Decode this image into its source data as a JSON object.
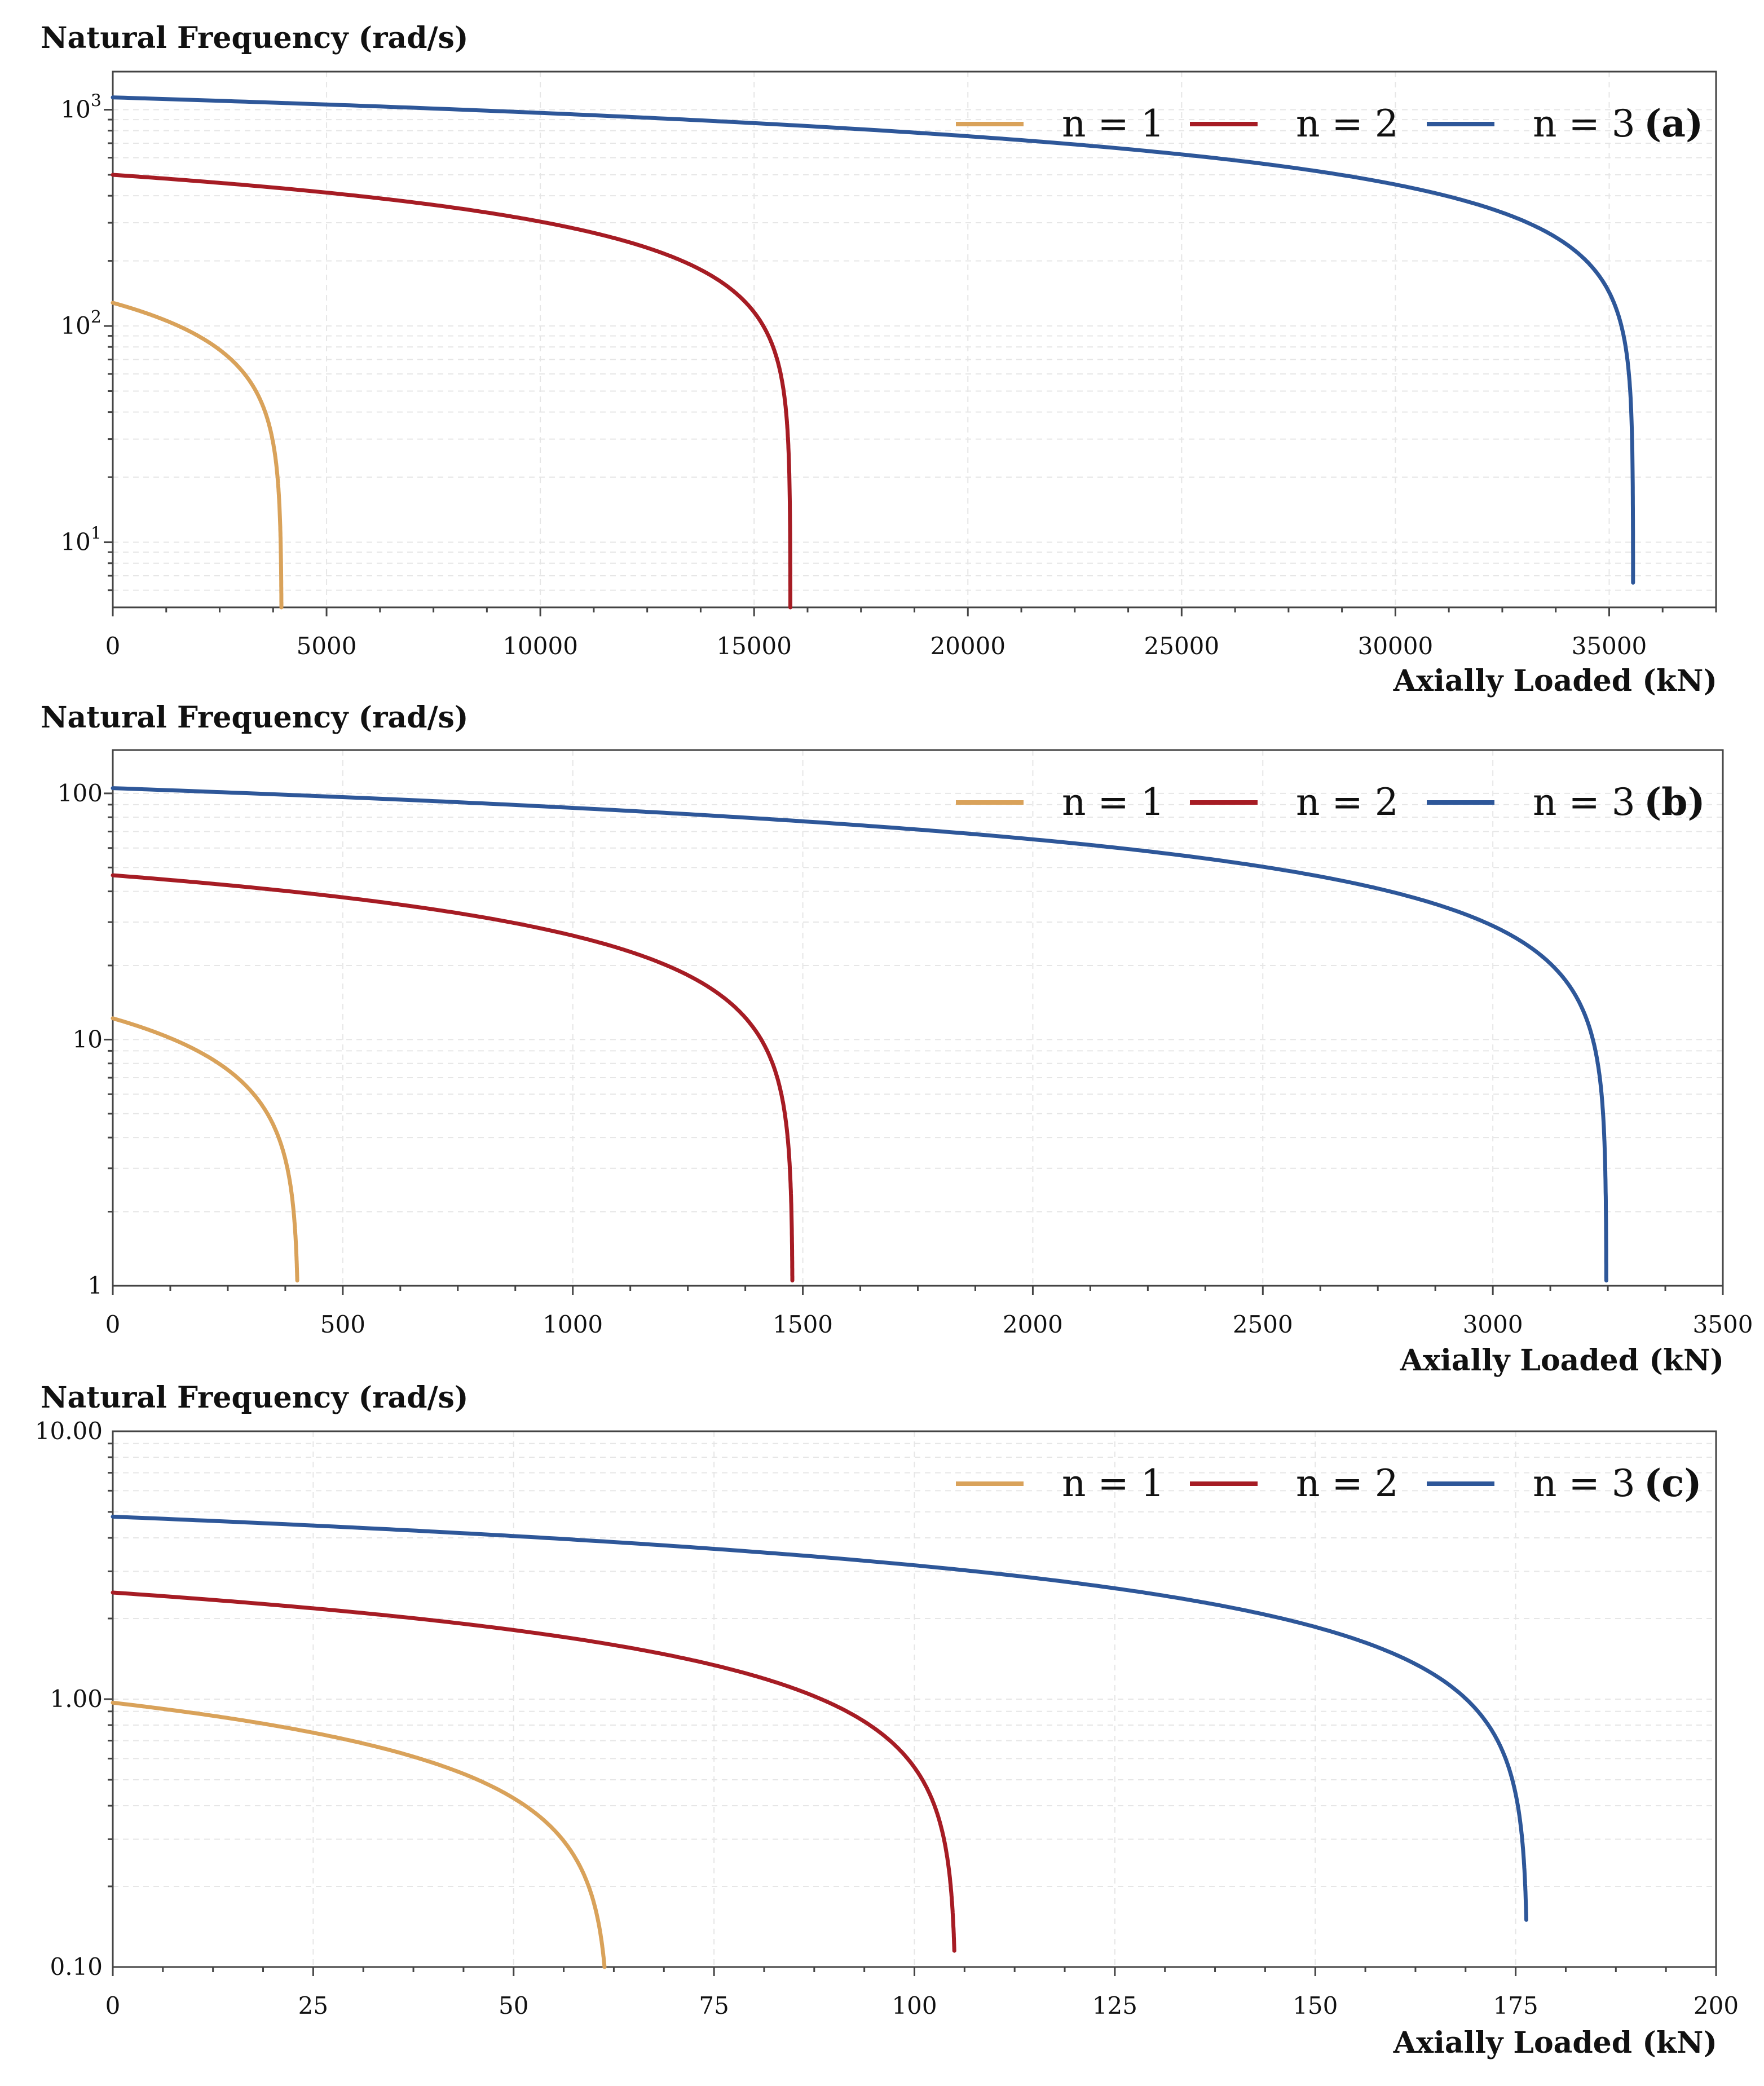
{
  "colors": {
    "n1": "#d9a25a",
    "n2": "#a61c24",
    "n3": "#2e5799"
  },
  "chart_data": [
    {
      "type": "line",
      "panel_label": "(a)",
      "ylabel": "Natural Frequency (rad/s)",
      "xlabel": "Axially Loaded (kN)",
      "yscale": "log",
      "xlim": [
        0,
        37500
      ],
      "ylim": [
        5,
        1500
      ],
      "xticks": [
        0,
        5000,
        10000,
        15000,
        20000,
        25000,
        30000,
        35000
      ],
      "xtick_labels": [
        "0",
        "5000",
        "10000",
        "15000",
        "20000",
        "25000",
        "30000",
        "35000"
      ],
      "yticks": [
        10,
        100,
        1000
      ],
      "ytick_labels": [
        "10^1",
        "10^2",
        "10^3"
      ],
      "grid": true,
      "legend_position": "top-right",
      "series": [
        {
          "name": "n = 1",
          "color_key": "n1",
          "omega0": 128,
          "pcr": 3950,
          "end_y": 5
        },
        {
          "name": "n = 2",
          "color_key": "n2",
          "omega0": 500,
          "pcr": 15850,
          "end_y": 5
        },
        {
          "name": "n = 3",
          "color_key": "n3",
          "omega0": 1140,
          "pcr": 35560,
          "end_y": 6.5
        }
      ]
    },
    {
      "type": "line",
      "panel_label": "(b)",
      "ylabel": "Natural Frequency (rad/s)",
      "xlabel": "Axially Loaded (kN)",
      "yscale": "log",
      "xlim": [
        0,
        3500
      ],
      "ylim": [
        1,
        150
      ],
      "xticks": [
        0,
        500,
        1000,
        1500,
        2000,
        2500,
        3000,
        3500
      ],
      "xtick_labels": [
        "0",
        "500",
        "1000",
        "1500",
        "2000",
        "2500",
        "3000",
        "3500"
      ],
      "yticks": [
        1,
        10,
        100
      ],
      "ytick_labels": [
        "1",
        "10",
        "100"
      ],
      "grid": true,
      "legend_position": "top-right",
      "series": [
        {
          "name": "n = 1",
          "color_key": "n1",
          "omega0": 12.2,
          "pcr": 404,
          "end_y": 1.05
        },
        {
          "name": "n = 2",
          "color_key": "n2",
          "omega0": 46.5,
          "pcr": 1478,
          "end_y": 1.05
        },
        {
          "name": "n = 3",
          "color_key": "n3",
          "omega0": 105,
          "pcr": 3247,
          "end_y": 1.05
        }
      ]
    },
    {
      "type": "line",
      "panel_label": "(c)",
      "ylabel": "Natural Frequency (rad/s)",
      "xlabel": "Axially Loaded (kN)",
      "yscale": "log",
      "xlim": [
        0,
        200
      ],
      "ylim": [
        0.1,
        10
      ],
      "xticks": [
        0,
        25,
        50,
        75,
        100,
        125,
        150,
        175,
        200
      ],
      "xtick_labels": [
        "0",
        "25",
        "50",
        "75",
        "100",
        "125",
        "150",
        "175",
        "200"
      ],
      "yticks": [
        0.1,
        1,
        10
      ],
      "ytick_labels": [
        "0.10",
        "1.00",
        "10.00"
      ],
      "grid": true,
      "legend_position": "top-right",
      "series": [
        {
          "name": "n = 1",
          "color_key": "n1",
          "omega0": 0.97,
          "pcr": 62.0,
          "end_y": 0.1
        },
        {
          "name": "n = 2",
          "color_key": "n2",
          "omega0": 2.5,
          "pcr": 105.2,
          "end_y": 0.115
        },
        {
          "name": "n = 3",
          "color_key": "n3",
          "omega0": 4.8,
          "pcr": 176.5,
          "end_y": 0.15
        }
      ]
    }
  ]
}
